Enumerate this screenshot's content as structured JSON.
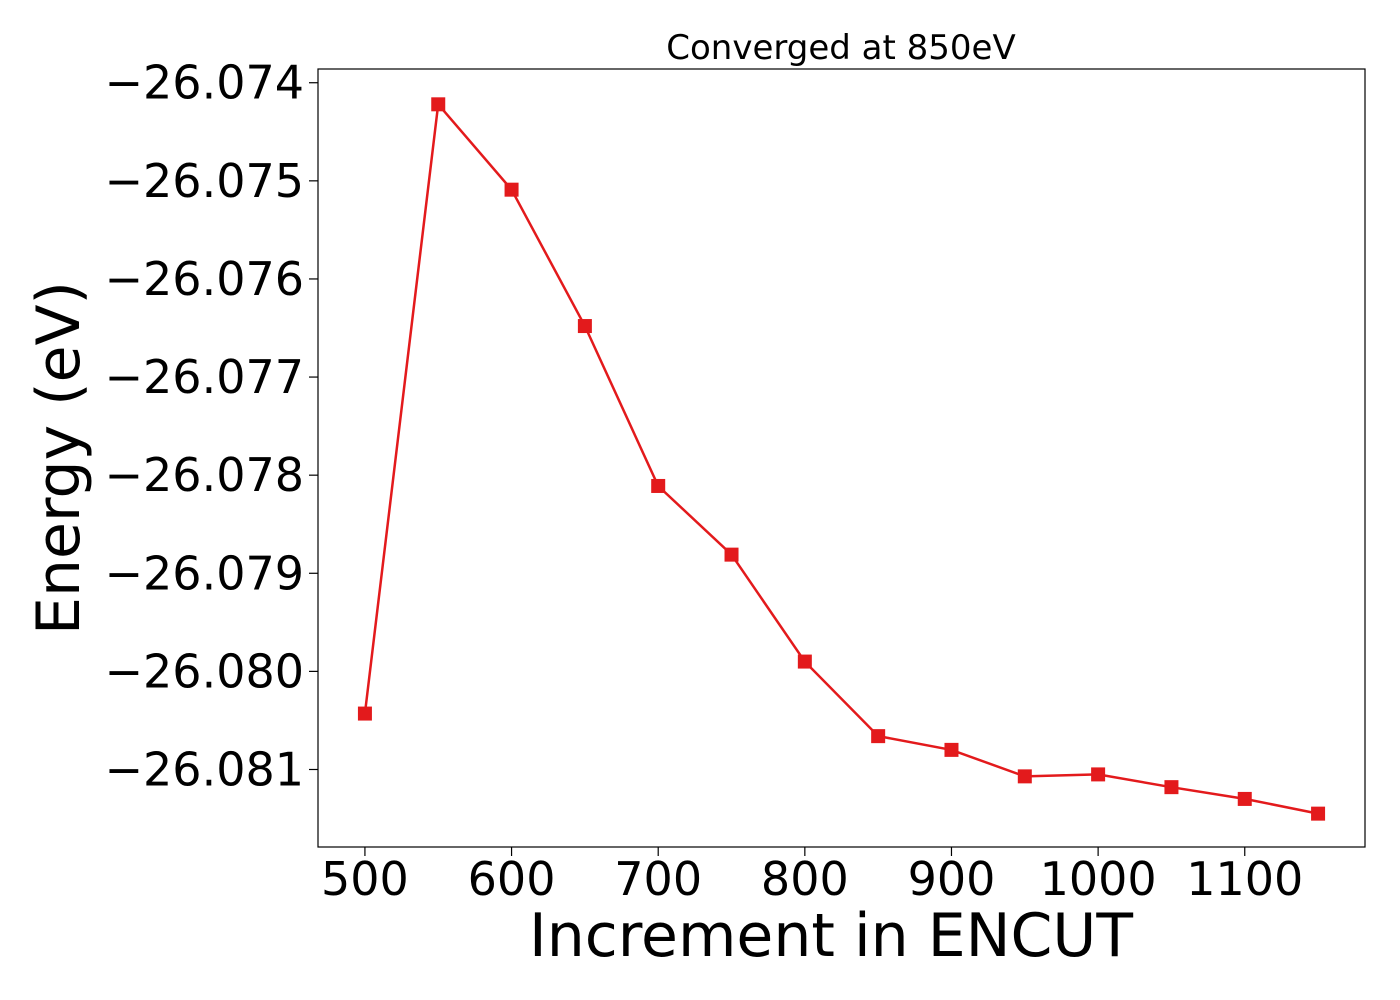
{
  "chart_data": {
    "type": "line",
    "title": "Converged at 850eV",
    "xlabel": "Increment in ENCUT",
    "ylabel": "Energy (eV)",
    "xlim": [
      468,
      1182
    ],
    "ylim": [
      -26.08179,
      -26.07386
    ],
    "x_ticks": [
      500,
      600,
      700,
      800,
      900,
      1000,
      1100
    ],
    "x_tick_labels": [
      "500",
      "600",
      "700",
      "800",
      "900",
      "1000",
      "1100"
    ],
    "y_ticks": [
      -26.074,
      -26.075,
      -26.076,
      -26.077,
      -26.078,
      -26.079,
      -26.08,
      -26.081
    ],
    "y_tick_labels": [
      "−26.074",
      "−26.075",
      "−26.076",
      "−26.077",
      "−26.078",
      "−26.079",
      "−26.080",
      "−26.081"
    ],
    "grid": false,
    "series": [
      {
        "color": "#e31a1c",
        "marker": "square",
        "x": [
          500,
          550,
          600,
          650,
          700,
          750,
          800,
          850,
          900,
          950,
          1000,
          1050,
          1100,
          1150
        ],
        "y": [
          -26.08043,
          -26.07422,
          -26.07509,
          -26.07648,
          -26.07811,
          -26.07881,
          -26.0799,
          -26.08066,
          -26.0808,
          -26.08107,
          -26.08105,
          -26.08118,
          -26.0813,
          -26.08145
        ]
      }
    ]
  }
}
